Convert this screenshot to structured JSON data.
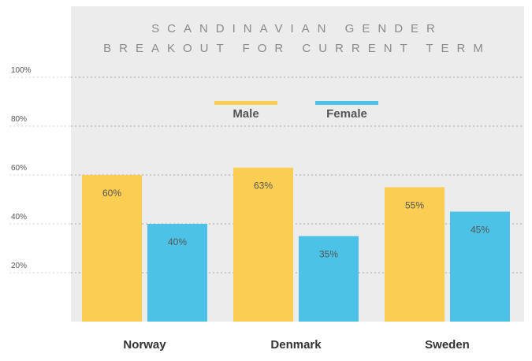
{
  "chart_data": {
    "type": "bar",
    "title_lines": [
      "SCANDINAVIAN GENDER",
      "BREAKOUT FOR CURRENT TERM"
    ],
    "categories": [
      "Norway",
      "Denmark",
      "Sweden"
    ],
    "series": [
      {
        "name": "Male",
        "color": "#fbcd52",
        "values": [
          60,
          63,
          55
        ],
        "labels": [
          "60%",
          "63%",
          "55%"
        ]
      },
      {
        "name": "Female",
        "color": "#4cc3e6",
        "values": [
          40,
          35,
          45
        ],
        "labels": [
          "40%",
          "35%",
          "45%"
        ]
      }
    ],
    "yticks": [
      {
        "value": 20,
        "label": "20%"
      },
      {
        "value": 40,
        "label": "40%"
      },
      {
        "value": 60,
        "label": "60%"
      },
      {
        "value": 80,
        "label": "80%"
      },
      {
        "value": 100,
        "label": "100%"
      }
    ],
    "ylim": [
      0,
      100
    ],
    "grid": true,
    "legend_position": "top-center",
    "background": "#ececec"
  }
}
